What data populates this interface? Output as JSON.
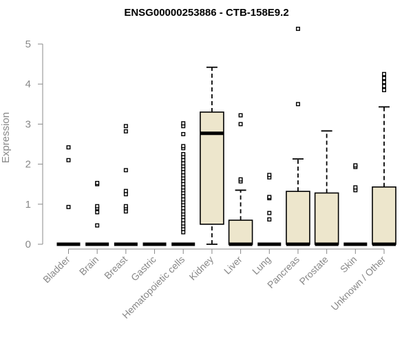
{
  "chart_data": {
    "type": "box",
    "title": "ENSG00000253886 - CTB-158E9.2",
    "xlabel": "",
    "ylabel": "Expression",
    "ylim": [
      0,
      5.4
    ],
    "yticks": [
      "0",
      "1",
      "2",
      "3",
      "4",
      "5"
    ],
    "grid": false,
    "box_fill": "#ede6cc",
    "categories": [
      "Bladder",
      "Brain",
      "Breast",
      "Gastric",
      "Hematopoietic cells",
      "Kidney",
      "Liver",
      "Lung",
      "Pancreas",
      "Prostate",
      "Skin",
      "Unknown / Other"
    ],
    "boxes": [
      {
        "min": 0,
        "q1": 0,
        "median": 0,
        "q3": 0,
        "max": 0,
        "outliers": [
          0.93,
          2.1,
          2.42
        ]
      },
      {
        "min": 0,
        "q1": 0,
        "median": 0,
        "q3": 0,
        "max": 0,
        "outliers": [
          0.47,
          0.8,
          0.9,
          0.95,
          1.5,
          1.53
        ]
      },
      {
        "min": 0,
        "q1": 0,
        "median": 0,
        "q3": 0,
        "max": 0,
        "outliers": [
          0.82,
          0.9,
          0.95,
          1.25,
          1.33,
          1.85,
          2.82,
          2.95
        ]
      },
      {
        "min": 0,
        "q1": 0,
        "median": 0,
        "q3": 0,
        "max": 0,
        "outliers": []
      },
      {
        "min": 0,
        "q1": 0,
        "median": 0,
        "q3": 0,
        "max": 0,
        "outliers": [
          0.3,
          0.38,
          0.45,
          0.52,
          0.6,
          0.68,
          0.75,
          0.82,
          0.9,
          0.98,
          1.05,
          1.12,
          1.2,
          1.28,
          1.35,
          1.42,
          1.5,
          1.58,
          1.65,
          1.72,
          1.8,
          1.88,
          1.95,
          2.02,
          2.1,
          2.18,
          2.25,
          2.4,
          2.45,
          2.75,
          2.95,
          3.02
        ]
      },
      {
        "min": 0,
        "q1": 0.5,
        "median": 2.77,
        "q3": 3.3,
        "max": 4.42,
        "outliers": []
      },
      {
        "min": 0,
        "q1": 0,
        "median": 0,
        "q3": 0.6,
        "max": 1.35,
        "outliers": [
          1.57,
          1.62,
          3.0,
          3.22
        ]
      },
      {
        "min": 0,
        "q1": 0,
        "median": 0,
        "q3": 0,
        "max": 0,
        "outliers": [
          0.62,
          0.78,
          1.15,
          1.18,
          1.67,
          1.73
        ]
      },
      {
        "min": 0,
        "q1": 0,
        "median": 0,
        "q3": 1.32,
        "max": 2.13,
        "outliers": [
          3.5,
          5.38
        ]
      },
      {
        "min": 0,
        "q1": 0,
        "median": 0,
        "q3": 1.28,
        "max": 2.83,
        "outliers": []
      },
      {
        "min": 0,
        "q1": 0,
        "median": 0,
        "q3": 0,
        "max": 0,
        "outliers": [
          1.35,
          1.42,
          1.93,
          1.97
        ]
      },
      {
        "min": 0,
        "q1": 0,
        "median": 0,
        "q3": 1.43,
        "max": 3.43,
        "outliers": [
          3.85,
          3.95,
          4.05,
          4.15,
          4.25
        ]
      }
    ]
  }
}
